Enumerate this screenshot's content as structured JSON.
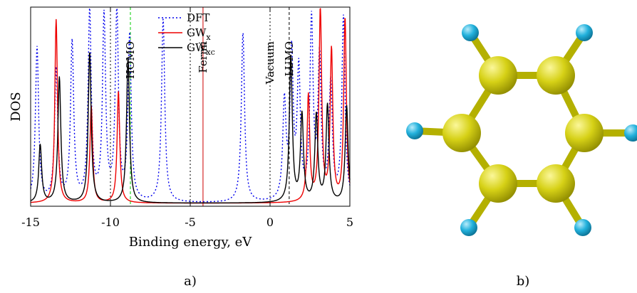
{
  "panel_a": {
    "caption": "a)",
    "xlabel": "Binding energy, eV",
    "ylabel": "DOS"
  },
  "panel_b": {
    "caption": "b)"
  },
  "colors": {
    "dft": "#0000ee",
    "gwx": "#ee0000",
    "gwxc": "#000000",
    "homo_line": "#00cc00",
    "fermi_line": "#cc0000",
    "carbon": "#c8c400",
    "hydrogen": "#1ea9d6"
  },
  "chart_data": {
    "type": "line",
    "xlabel": "Binding energy, eV",
    "ylabel": "DOS",
    "xlim": [
      -15,
      5
    ],
    "xticks": [
      -15,
      -10,
      -5,
      0,
      5
    ],
    "xtick_labels": [
      "-15",
      "-10",
      "-5",
      "0",
      "5"
    ],
    "legend_position": "top-center",
    "series": [
      {
        "name": "DFT",
        "name_main": "DFT",
        "name_sub": "",
        "style": "dotted",
        "color": "#0000ee",
        "width": 0.12,
        "peaks": [
          [
            -14.6,
            0.8
          ],
          [
            -13.4,
            0.68
          ],
          [
            -12.4,
            0.82
          ],
          [
            -11.3,
            0.98
          ],
          [
            -10.4,
            0.95
          ],
          [
            -9.6,
            0.98
          ],
          [
            -8.8,
            0.85
          ],
          [
            -6.7,
            0.95
          ],
          [
            -1.7,
            0.88
          ],
          [
            0.9,
            0.5
          ],
          [
            1.35,
            0.75
          ],
          [
            1.8,
            0.66
          ],
          [
            2.6,
            0.92
          ],
          [
            3.1,
            0.72
          ],
          [
            3.8,
            0.6
          ],
          [
            4.6,
            0.95
          ]
        ]
      },
      {
        "name": "GWx",
        "name_main": "GW",
        "name_sub": "x",
        "style": "solid",
        "color": "#ee0000",
        "width": 0.1,
        "peaks": [
          [
            -13.4,
            0.95
          ],
          [
            -11.2,
            0.5
          ],
          [
            -9.5,
            0.58
          ],
          [
            2.4,
            0.55
          ],
          [
            3.15,
            1.0
          ],
          [
            3.85,
            0.78
          ],
          [
            4.7,
            0.95
          ]
        ]
      },
      {
        "name": "GWxc",
        "name_main": "GW",
        "name_sub": "xc",
        "style": "solid",
        "color": "#000000",
        "width": 0.11,
        "peaks": [
          [
            -14.4,
            0.3
          ],
          [
            -13.2,
            0.65
          ],
          [
            -11.3,
            0.78
          ],
          [
            -8.9,
            0.75
          ],
          [
            1.3,
            0.75
          ],
          [
            2.0,
            0.45
          ],
          [
            2.9,
            0.45
          ],
          [
            3.6,
            0.5
          ],
          [
            4.8,
            0.5
          ]
        ]
      }
    ],
    "vertical_lines": [
      {
        "x": -10,
        "style": "dotted",
        "color": "#000000",
        "label": ""
      },
      {
        "x": -5,
        "style": "dotted",
        "color": "#000000",
        "label": ""
      },
      {
        "x": 0,
        "style": "dotted",
        "color": "#000000",
        "label": "Vacuum"
      },
      {
        "x": -8.75,
        "style": "dashed",
        "color": "#00cc00",
        "label": "HOMO"
      },
      {
        "x": -4.2,
        "style": "solid",
        "color": "#cc0000",
        "label": "Fermi"
      },
      {
        "x": 1.2,
        "style": "dashed",
        "color": "#000000",
        "label": "LUMO"
      }
    ]
  }
}
